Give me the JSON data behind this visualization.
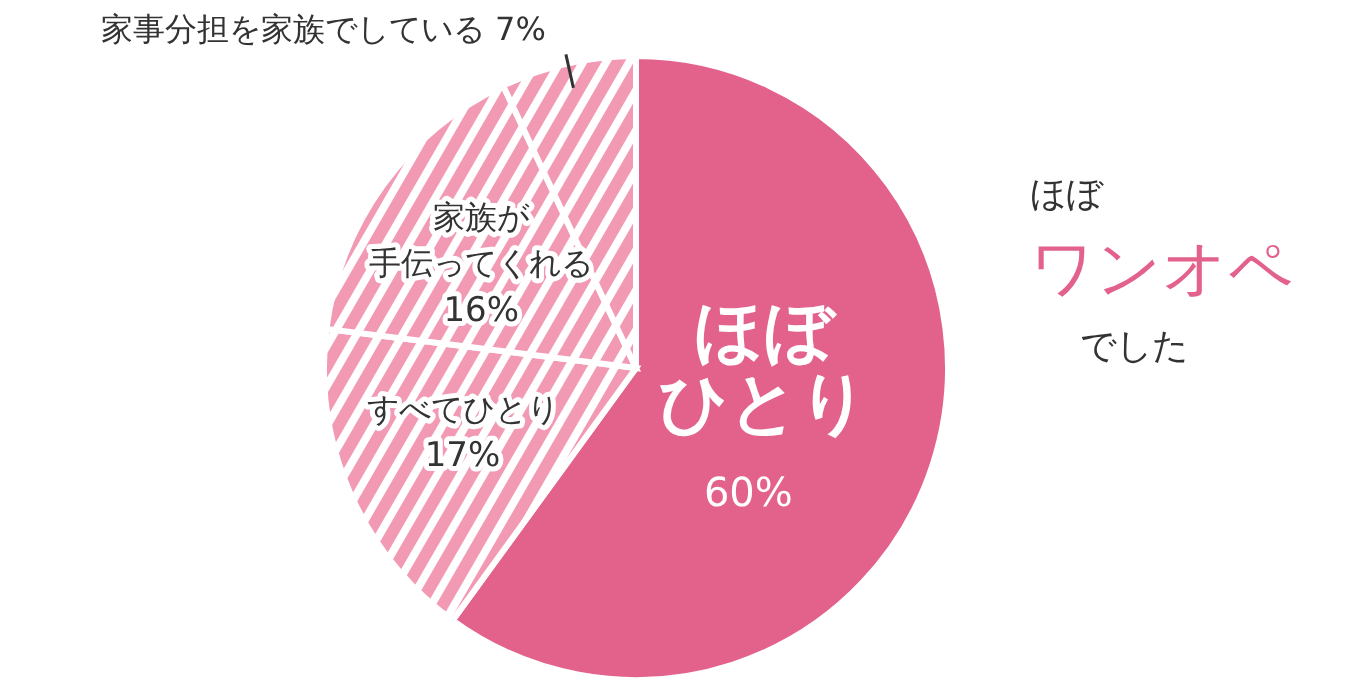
{
  "chart_data": {
    "type": "pie",
    "categories": [
      "ほぼひとり",
      "すべてひとり",
      "家族が手伝ってくれる",
      "家事分担を家族でしている"
    ],
    "values": [
      60,
      17,
      16,
      7
    ],
    "value_labels": [
      "60%",
      "17%",
      "16%",
      "7%"
    ],
    "colors": [
      "#e3628c",
      "#f29ab4",
      "#f29ab4",
      "#f29ab4"
    ],
    "annotations": [
      "ほぼワンオペでした"
    ]
  }
}
